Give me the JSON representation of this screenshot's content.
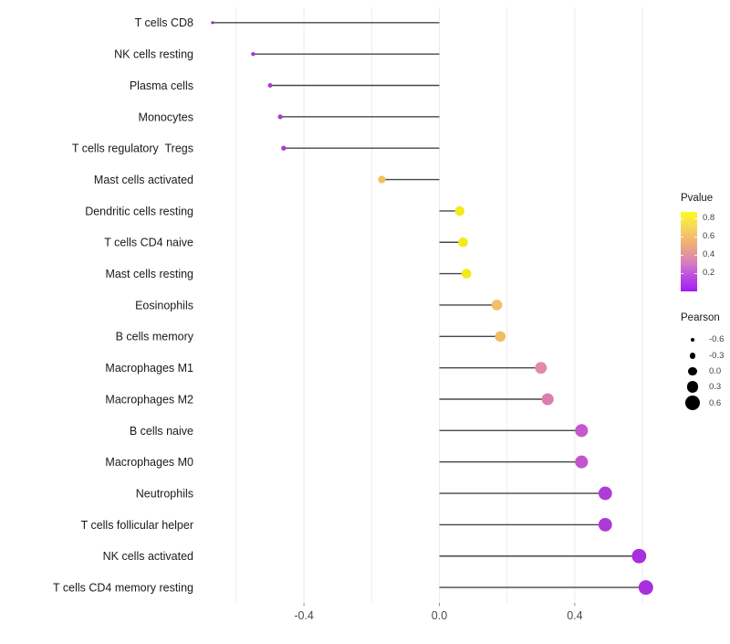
{
  "figure": {
    "background": "#ffffff"
  },
  "chart_data": {
    "type": "scatter",
    "variant": "horizontal-lollipop",
    "title": "",
    "xlabel": "",
    "ylabel": "",
    "xlim": [
      -0.73,
      0.67
    ],
    "x_ticks": [
      -0.4,
      0.0,
      0.4
    ],
    "x_tick_labels": [
      "-0.4",
      "0.0",
      "0.4"
    ],
    "x_gridlines": [
      -0.6,
      -0.4,
      -0.2,
      0.0,
      0.2,
      0.4,
      0.6
    ],
    "grid": "vertical-only",
    "categories": [
      "T cells CD8",
      "NK cells resting",
      "Plasma cells",
      "Monocytes",
      "T cells regulatory  Tregs",
      "Mast cells activated",
      "Dendritic cells resting",
      "T cells CD4 naive",
      "Mast cells resting",
      "Eosinophils",
      "B cells memory",
      "Macrophages M1",
      "Macrophages M2",
      "B cells naive",
      "Macrophages M0",
      "Neutrophils",
      "T cells follicular helper",
      "NK cells activated",
      "T cells CD4 memory resting"
    ],
    "series": [
      {
        "name": "Pearson",
        "values": [
          -0.67,
          -0.55,
          -0.5,
          -0.47,
          -0.46,
          -0.17,
          0.06,
          0.07,
          0.08,
          0.17,
          0.18,
          0.3,
          0.32,
          0.42,
          0.42,
          0.49,
          0.49,
          0.59,
          0.61
        ]
      }
    ],
    "point_colors": [
      "#8c2bd2",
      "#a43bd3",
      "#a43bd3",
      "#a63ed2",
      "#a63ed2",
      "#f0c263",
      "#f4ea19",
      "#f4ea19",
      "#f3e81c",
      "#f0bf66",
      "#efbd64",
      "#e189ae",
      "#dd7eb0",
      "#c558cb",
      "#c355cc",
      "#ae3cd8",
      "#ad39d8",
      "#a82ede",
      "#a82ede"
    ],
    "color_encodes": "Pvalue",
    "size_encodes": "Pearson",
    "stem_color": "#474747",
    "gridline_color": "#ececec",
    "tick_color": "#919191",
    "axis_text_color": "#4a4a4a",
    "label_text_color": "#1a1a1a",
    "legend_pvalue": {
      "title": "Pvalue",
      "tick_labels": [
        "0.8",
        "0.6",
        "0.4",
        "0.2"
      ],
      "tick_values": [
        0.8,
        0.6,
        0.4,
        0.2
      ],
      "gradient_stops": [
        "#fcf921 0%",
        "#f6d55e 20%",
        "#eda47f 45%",
        "#d47cc4 65%",
        "#bb49e0 82%",
        "#9e1ef5 100%"
      ],
      "position": "right"
    },
    "legend_pearson": {
      "title": "Pearson",
      "labels": [
        "-0.6",
        "-0.3",
        "0.0",
        "0.3",
        "0.6"
      ],
      "values": [
        -0.6,
        -0.3,
        0.0,
        0.3,
        0.6
      ],
      "dot_color": "#000000",
      "position": "right"
    }
  }
}
